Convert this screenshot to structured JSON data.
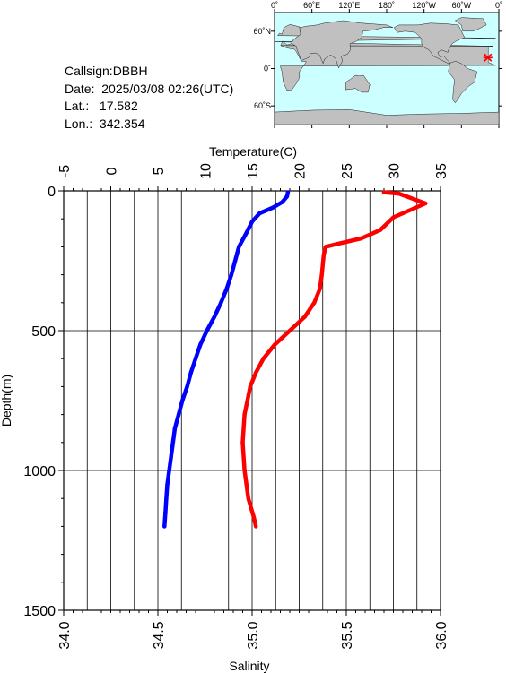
{
  "station": {
    "callsign_line": "Callsign:DBBH",
    "date_line": "Date:  2025/03/08 02:26(UTC)",
    "lat_line": "Lat.:   17.582",
    "lon_line": "Lon.:  342.354"
  },
  "map": {
    "lon_labels": [
      "0˚",
      "60˚E",
      "120˚E",
      "180˚",
      "120˚W",
      "60˚W",
      "0˚"
    ],
    "lat_labels": [
      "60˚N",
      "0˚",
      "60˚S"
    ],
    "ocean_color": "#ccffff",
    "land_color": "#c0c0c0",
    "marker_color": "#ff0000",
    "marker": {
      "lon": 342.354,
      "lat": 17.582
    }
  },
  "chart_data": {
    "type": "line",
    "top_axis_label": "Temperature(C)",
    "bottom_axis_label": "Salinity",
    "y_axis_label": "Depth(m)",
    "temperature_range": [
      -5,
      35
    ],
    "temperature_ticks": [
      "-5",
      "0",
      "5",
      "10",
      "15",
      "20",
      "25",
      "30",
      "35"
    ],
    "salinity_range": [
      34.0,
      36.0
    ],
    "salinity_ticks": [
      "34.0",
      "34.5",
      "35.0",
      "35.5",
      "36.0"
    ],
    "depth_range": [
      0,
      1500
    ],
    "depth_ticks": [
      "0",
      "500",
      "1000",
      "1500"
    ],
    "grid": true,
    "series": [
      {
        "quantity": "temperature",
        "color": "#0000ff",
        "points": [
          [
            18.8,
            5
          ],
          [
            18.7,
            20
          ],
          [
            18.2,
            40
          ],
          [
            17.2,
            60
          ],
          [
            15.8,
            80
          ],
          [
            15.0,
            110
          ],
          [
            14.4,
            150
          ],
          [
            13.6,
            200
          ],
          [
            13.2,
            250
          ],
          [
            12.8,
            300
          ],
          [
            12.3,
            350
          ],
          [
            11.7,
            400
          ],
          [
            11.0,
            450
          ],
          [
            10.2,
            500
          ],
          [
            9.5,
            550
          ],
          [
            9.0,
            600
          ],
          [
            8.5,
            650
          ],
          [
            8.1,
            700
          ],
          [
            7.6,
            750
          ],
          [
            7.2,
            800
          ],
          [
            6.8,
            850
          ],
          [
            6.6,
            900
          ],
          [
            6.4,
            950
          ],
          [
            6.2,
            1000
          ],
          [
            6.0,
            1050
          ],
          [
            5.9,
            1100
          ],
          [
            5.8,
            1150
          ],
          [
            5.7,
            1200
          ]
        ]
      },
      {
        "quantity": "salinity",
        "color": "#ff0000",
        "points": [
          [
            35.7,
            5
          ],
          [
            35.78,
            10
          ],
          [
            35.92,
            45
          ],
          [
            35.8,
            80
          ],
          [
            35.75,
            95
          ],
          [
            35.68,
            140
          ],
          [
            35.58,
            170
          ],
          [
            35.45,
            190
          ],
          [
            35.39,
            200
          ],
          [
            35.38,
            230
          ],
          [
            35.37,
            300
          ],
          [
            35.36,
            350
          ],
          [
            35.33,
            400
          ],
          [
            35.28,
            450
          ],
          [
            35.2,
            500
          ],
          [
            35.12,
            550
          ],
          [
            35.06,
            600
          ],
          [
            35.02,
            650
          ],
          [
            34.99,
            700
          ],
          [
            34.96,
            800
          ],
          [
            34.95,
            900
          ],
          [
            34.96,
            1000
          ],
          [
            34.98,
            1100
          ],
          [
            35.01,
            1170
          ],
          [
            35.02,
            1200
          ]
        ]
      }
    ]
  }
}
